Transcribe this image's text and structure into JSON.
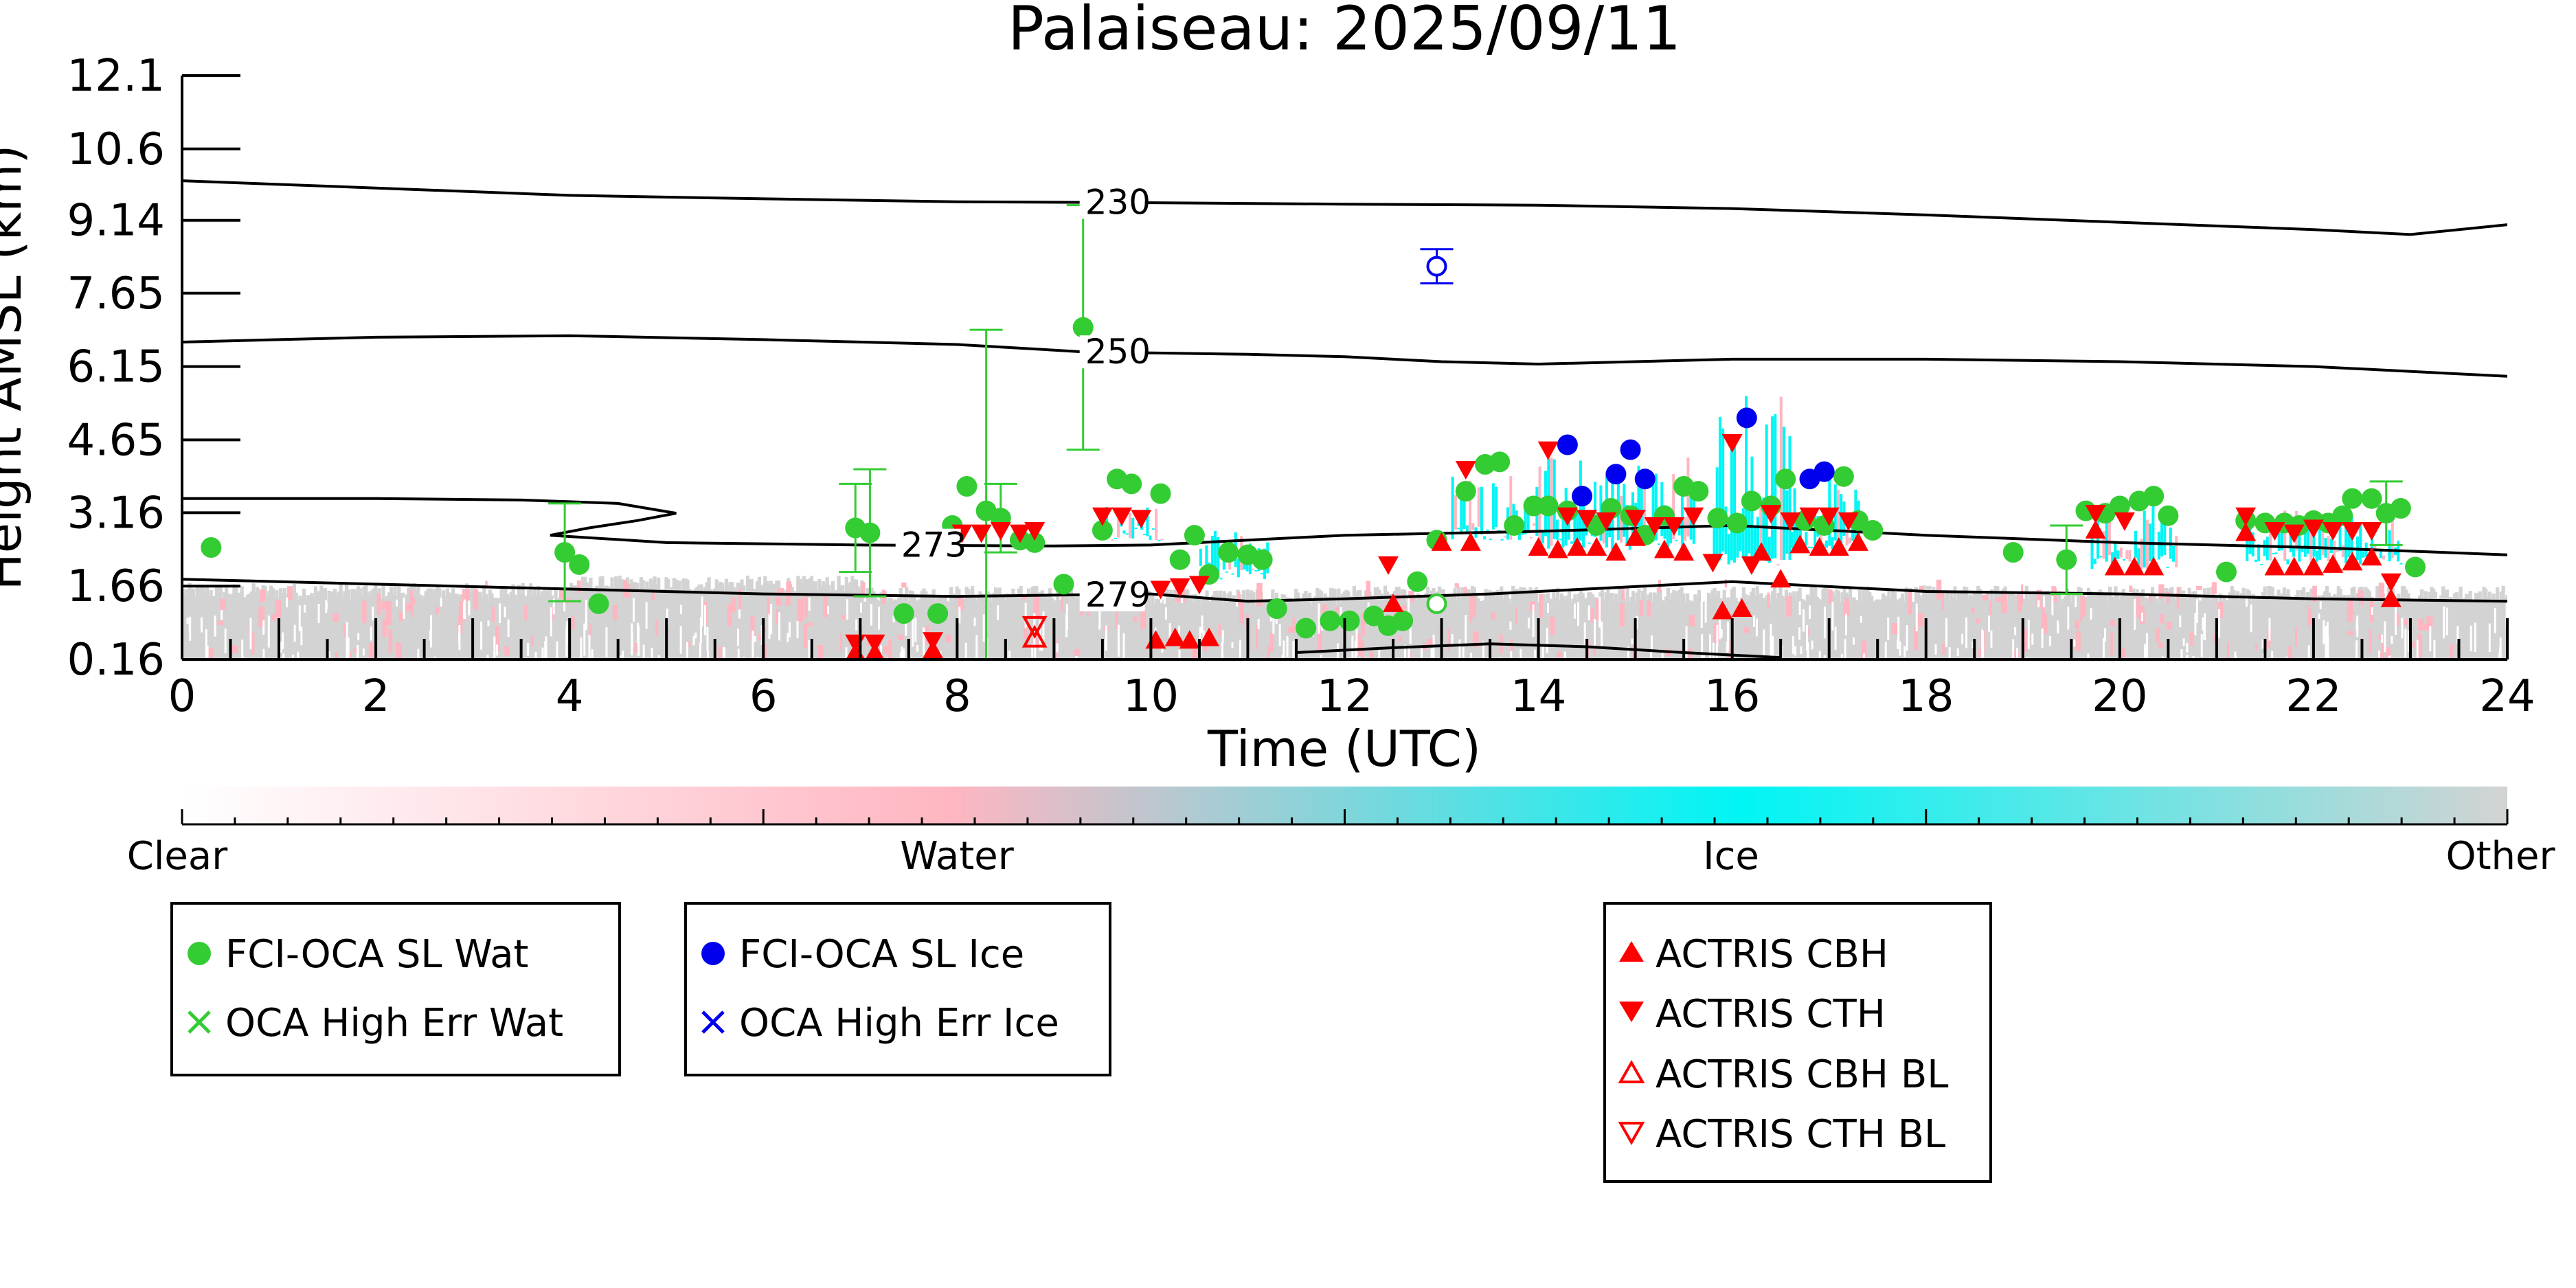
{
  "chart_data": {
    "type": "scatter",
    "title": "Palaiseau: 2025/09/11",
    "xlabel": "Time (UTC)",
    "ylabel": "Height AMSL (km)",
    "xlim": [
      0,
      24
    ],
    "ylim": [
      0.16,
      12.1
    ],
    "x_ticks": [
      0,
      2,
      4,
      6,
      8,
      10,
      12,
      14,
      16,
      18,
      20,
      22,
      24
    ],
    "y_ticks": [
      "0.16",
      "1.66",
      "3.16",
      "4.65",
      "6.15",
      "7.65",
      "9.14",
      "10.6",
      "12.1"
    ],
    "y_tick_values": [
      0.16,
      1.66,
      3.16,
      4.65,
      6.15,
      7.65,
      9.14,
      10.6,
      12.1
    ],
    "grid": false,
    "colorbar": {
      "labels": [
        "Clear",
        "Water",
        "Ice",
        "Other"
      ],
      "colors": [
        "#ffffff",
        "#ffb6c1",
        "#00f5f5",
        "#d3d3d3"
      ]
    },
    "contours": [
      {
        "label": "230",
        "label_x": 9.3,
        "points": [
          [
            0,
            9.95
          ],
          [
            2,
            9.8
          ],
          [
            4,
            9.65
          ],
          [
            6,
            9.58
          ],
          [
            8,
            9.52
          ],
          [
            10,
            9.5
          ],
          [
            12,
            9.47
          ],
          [
            14,
            9.45
          ],
          [
            16,
            9.38
          ],
          [
            18,
            9.25
          ],
          [
            20,
            9.1
          ],
          [
            22,
            8.95
          ],
          [
            23,
            8.85
          ],
          [
            24,
            9.05
          ]
        ]
      },
      {
        "label": "250",
        "label_x": 9.3,
        "points": [
          [
            0,
            6.65
          ],
          [
            1,
            6.7
          ],
          [
            2,
            6.75
          ],
          [
            4,
            6.78
          ],
          [
            6,
            6.7
          ],
          [
            8,
            6.6
          ],
          [
            9.3,
            6.45
          ],
          [
            11,
            6.4
          ],
          [
            12,
            6.35
          ],
          [
            13,
            6.25
          ],
          [
            14,
            6.2
          ],
          [
            16,
            6.3
          ],
          [
            18,
            6.3
          ],
          [
            20,
            6.25
          ],
          [
            22,
            6.15
          ],
          [
            24,
            5.95
          ]
        ]
      },
      {
        "label": "273",
        "label_x": 7.4,
        "points": [
          [
            0,
            3.45
          ],
          [
            2,
            3.45
          ],
          [
            3.5,
            3.42
          ],
          [
            4.5,
            3.35
          ],
          [
            5.1,
            3.15
          ],
          [
            4.7,
            3.0
          ],
          [
            4.2,
            2.85
          ],
          [
            3.8,
            2.7
          ],
          [
            5,
            2.55
          ],
          [
            7,
            2.5
          ],
          [
            9,
            2.48
          ],
          [
            10,
            2.5
          ],
          [
            12,
            2.7
          ],
          [
            14,
            2.78
          ],
          [
            16,
            2.9
          ],
          [
            18,
            2.7
          ],
          [
            20,
            2.55
          ],
          [
            22,
            2.45
          ],
          [
            24,
            2.3
          ]
        ]
      },
      {
        "label": "279",
        "label_x": 9.3,
        "points": [
          [
            0,
            1.8
          ],
          [
            2,
            1.7
          ],
          [
            4,
            1.6
          ],
          [
            6,
            1.5
          ],
          [
            8,
            1.45
          ],
          [
            10,
            1.5
          ],
          [
            11,
            1.35
          ],
          [
            12,
            1.4
          ],
          [
            13.5,
            1.5
          ],
          [
            15,
            1.65
          ],
          [
            16,
            1.75
          ],
          [
            18,
            1.55
          ],
          [
            20,
            1.5
          ],
          [
            22,
            1.4
          ],
          [
            24,
            1.35
          ]
        ]
      },
      {
        "label": "",
        "label_x": null,
        "points": [
          [
            11.5,
            0.3
          ],
          [
            12.5,
            0.4
          ],
          [
            13.5,
            0.48
          ],
          [
            14.5,
            0.42
          ],
          [
            15.5,
            0.3
          ],
          [
            16.5,
            0.2
          ]
        ]
      }
    ],
    "series": [
      {
        "name": "FCI-OCA SL Wat",
        "marker": "circle",
        "color": "#33cc33",
        "points": [
          {
            "x": 0.3,
            "y": 2.45
          },
          {
            "x": 3.95,
            "y": 2.35,
            "err": 1.0
          },
          {
            "x": 4.1,
            "y": 2.1
          },
          {
            "x": 4.3,
            "y": 1.3
          },
          {
            "x": 6.95,
            "y": 2.85,
            "err": 0.9
          },
          {
            "x": 7.1,
            "y": 2.75,
            "err": 1.3
          },
          {
            "x": 7.45,
            "y": 1.1
          },
          {
            "x": 7.8,
            "y": 1.1
          },
          {
            "x": 7.95,
            "y": 2.9
          },
          {
            "x": 8.1,
            "y": 3.7
          },
          {
            "x": 8.3,
            "y": 3.2,
            "err": 3.7
          },
          {
            "x": 8.45,
            "y": 3.05,
            "err": 0.7
          },
          {
            "x": 8.65,
            "y": 2.6
          },
          {
            "x": 8.8,
            "y": 2.55
          },
          {
            "x": 9.1,
            "y": 1.7
          },
          {
            "x": 9.3,
            "y": 6.95,
            "err": 2.5
          },
          {
            "x": 9.5,
            "y": 2.8
          },
          {
            "x": 9.65,
            "y": 3.85
          },
          {
            "x": 9.8,
            "y": 3.75
          },
          {
            "x": 10.1,
            "y": 3.55
          },
          {
            "x": 10.3,
            "y": 2.2
          },
          {
            "x": 10.45,
            "y": 2.7
          },
          {
            "x": 10.6,
            "y": 1.9
          },
          {
            "x": 10.8,
            "y": 2.35
          },
          {
            "x": 11.0,
            "y": 2.3
          },
          {
            "x": 11.15,
            "y": 2.2
          },
          {
            "x": 11.3,
            "y": 1.2
          },
          {
            "x": 11.6,
            "y": 0.8
          },
          {
            "x": 11.85,
            "y": 0.95
          },
          {
            "x": 12.05,
            "y": 0.95
          },
          {
            "x": 12.3,
            "y": 1.05
          },
          {
            "x": 12.45,
            "y": 0.85
          },
          {
            "x": 12.6,
            "y": 0.95
          },
          {
            "x": 12.75,
            "y": 1.75
          },
          {
            "x": 12.95,
            "y": 2.6
          },
          {
            "x": 13.25,
            "y": 3.6
          },
          {
            "x": 13.45,
            "y": 4.15
          },
          {
            "x": 13.6,
            "y": 4.2
          },
          {
            "x": 13.75,
            "y": 2.9
          },
          {
            "x": 13.95,
            "y": 3.3
          },
          {
            "x": 14.1,
            "y": 3.3
          },
          {
            "x": 14.3,
            "y": 3.2
          },
          {
            "x": 14.6,
            "y": 2.9
          },
          {
            "x": 14.75,
            "y": 3.25
          },
          {
            "x": 14.95,
            "y": 3.1
          },
          {
            "x": 15.1,
            "y": 2.7
          },
          {
            "x": 15.3,
            "y": 3.1
          },
          {
            "x": 15.5,
            "y": 3.7
          },
          {
            "x": 15.65,
            "y": 3.6
          },
          {
            "x": 15.85,
            "y": 3.05
          },
          {
            "x": 16.05,
            "y": 2.95
          },
          {
            "x": 16.2,
            "y": 3.4
          },
          {
            "x": 16.4,
            "y": 3.3
          },
          {
            "x": 16.55,
            "y": 3.85
          },
          {
            "x": 16.75,
            "y": 3.0
          },
          {
            "x": 16.95,
            "y": 2.9
          },
          {
            "x": 17.15,
            "y": 3.9
          },
          {
            "x": 17.3,
            "y": 3.0
          },
          {
            "x": 17.45,
            "y": 2.8
          },
          {
            "x": 18.9,
            "y": 2.35
          },
          {
            "x": 19.45,
            "y": 2.2,
            "err": 0.7
          },
          {
            "x": 19.65,
            "y": 3.2
          },
          {
            "x": 19.85,
            "y": 3.15
          },
          {
            "x": 20.0,
            "y": 3.3
          },
          {
            "x": 20.2,
            "y": 3.4
          },
          {
            "x": 20.35,
            "y": 3.5
          },
          {
            "x": 20.5,
            "y": 3.1
          },
          {
            "x": 21.1,
            "y": 1.95
          },
          {
            "x": 21.3,
            "y": 3.0
          },
          {
            "x": 21.5,
            "y": 2.95
          },
          {
            "x": 21.7,
            "y": 2.95
          },
          {
            "x": 21.85,
            "y": 2.9
          },
          {
            "x": 22.0,
            "y": 3.0
          },
          {
            "x": 22.15,
            "y": 2.95
          },
          {
            "x": 22.3,
            "y": 3.1
          },
          {
            "x": 22.4,
            "y": 3.45
          },
          {
            "x": 22.6,
            "y": 3.45
          },
          {
            "x": 22.75,
            "y": 3.15,
            "err": 0.65
          },
          {
            "x": 22.9,
            "y": 3.25
          },
          {
            "x": 23.05,
            "y": 2.05
          }
        ]
      },
      {
        "name": "OCA High Err Wat",
        "marker": "x",
        "color": "#33cc33",
        "points": []
      },
      {
        "name": "FCI-OCA SL Ice",
        "marker": "circle",
        "color": "#0000ee",
        "points": [
          {
            "x": 14.3,
            "y": 4.55
          },
          {
            "x": 14.45,
            "y": 3.5
          },
          {
            "x": 14.8,
            "y": 3.95
          },
          {
            "x": 14.95,
            "y": 4.45
          },
          {
            "x": 15.1,
            "y": 3.85
          },
          {
            "x": 16.15,
            "y": 5.1
          },
          {
            "x": 16.8,
            "y": 3.85
          },
          {
            "x": 16.95,
            "y": 4.0
          }
        ]
      },
      {
        "name": "OCA High Err Ice",
        "marker": "x",
        "color": "#0000ee",
        "points": []
      },
      {
        "name": "ACTRIS CBH",
        "marker": "triangle-up",
        "color": "#ff0000",
        "points": [
          {
            "x": 6.95,
            "y": 0.3
          },
          {
            "x": 7.15,
            "y": 0.3
          },
          {
            "x": 7.75,
            "y": 0.35
          },
          {
            "x": 10.05,
            "y": 0.55
          },
          {
            "x": 10.25,
            "y": 0.6
          },
          {
            "x": 10.4,
            "y": 0.55
          },
          {
            "x": 10.6,
            "y": 0.6
          },
          {
            "x": 12.5,
            "y": 1.3
          },
          {
            "x": 13.0,
            "y": 2.55
          },
          {
            "x": 13.3,
            "y": 2.55
          },
          {
            "x": 14.0,
            "y": 2.45
          },
          {
            "x": 14.2,
            "y": 2.4
          },
          {
            "x": 14.4,
            "y": 2.45
          },
          {
            "x": 14.6,
            "y": 2.45
          },
          {
            "x": 14.8,
            "y": 2.35
          },
          {
            "x": 15.0,
            "y": 2.65
          },
          {
            "x": 15.3,
            "y": 2.4
          },
          {
            "x": 15.5,
            "y": 2.35
          },
          {
            "x": 15.9,
            "y": 1.15
          },
          {
            "x": 16.1,
            "y": 1.2
          },
          {
            "x": 16.3,
            "y": 2.35
          },
          {
            "x": 16.5,
            "y": 1.8
          },
          {
            "x": 16.7,
            "y": 2.5
          },
          {
            "x": 16.9,
            "y": 2.45
          },
          {
            "x": 17.1,
            "y": 2.45
          },
          {
            "x": 17.3,
            "y": 2.55
          },
          {
            "x": 19.75,
            "y": 2.8
          },
          {
            "x": 19.95,
            "y": 2.05
          },
          {
            "x": 20.15,
            "y": 2.05
          },
          {
            "x": 20.35,
            "y": 2.05
          },
          {
            "x": 21.3,
            "y": 2.75
          },
          {
            "x": 21.6,
            "y": 2.05
          },
          {
            "x": 21.8,
            "y": 2.05
          },
          {
            "x": 22.0,
            "y": 2.05
          },
          {
            "x": 22.2,
            "y": 2.1
          },
          {
            "x": 22.4,
            "y": 2.15
          },
          {
            "x": 22.6,
            "y": 2.25
          },
          {
            "x": 22.8,
            "y": 1.4
          }
        ]
      },
      {
        "name": "ACTRIS CTH",
        "marker": "triangle-down",
        "color": "#ff0000",
        "points": [
          {
            "x": 6.95,
            "y": 0.5
          },
          {
            "x": 7.15,
            "y": 0.5
          },
          {
            "x": 7.75,
            "y": 0.55
          },
          {
            "x": 8.05,
            "y": 2.75
          },
          {
            "x": 8.25,
            "y": 2.75
          },
          {
            "x": 8.45,
            "y": 2.8
          },
          {
            "x": 8.65,
            "y": 2.75
          },
          {
            "x": 8.8,
            "y": 2.8
          },
          {
            "x": 9.5,
            "y": 3.1
          },
          {
            "x": 9.7,
            "y": 3.1
          },
          {
            "x": 9.9,
            "y": 3.05
          },
          {
            "x": 10.1,
            "y": 1.6
          },
          {
            "x": 10.3,
            "y": 1.65
          },
          {
            "x": 10.5,
            "y": 1.7
          },
          {
            "x": 12.45,
            "y": 2.1
          },
          {
            "x": 13.25,
            "y": 4.05
          },
          {
            "x": 14.1,
            "y": 4.45
          },
          {
            "x": 14.3,
            "y": 3.1
          },
          {
            "x": 14.5,
            "y": 3.05
          },
          {
            "x": 14.7,
            "y": 3.0
          },
          {
            "x": 15.0,
            "y": 3.05
          },
          {
            "x": 15.2,
            "y": 2.9
          },
          {
            "x": 15.4,
            "y": 2.9
          },
          {
            "x": 15.6,
            "y": 3.1
          },
          {
            "x": 15.8,
            "y": 2.15
          },
          {
            "x": 16.0,
            "y": 4.6
          },
          {
            "x": 16.2,
            "y": 2.1
          },
          {
            "x": 16.4,
            "y": 3.15
          },
          {
            "x": 16.6,
            "y": 3.0
          },
          {
            "x": 16.8,
            "y": 3.1
          },
          {
            "x": 17.0,
            "y": 3.1
          },
          {
            "x": 17.2,
            "y": 3.0
          },
          {
            "x": 19.75,
            "y": 3.15
          },
          {
            "x": 20.05,
            "y": 3.0
          },
          {
            "x": 21.3,
            "y": 3.1
          },
          {
            "x": 21.6,
            "y": 2.8
          },
          {
            "x": 21.8,
            "y": 2.75
          },
          {
            "x": 22.0,
            "y": 2.85
          },
          {
            "x": 22.2,
            "y": 2.8
          },
          {
            "x": 22.4,
            "y": 2.8
          },
          {
            "x": 22.6,
            "y": 2.8
          },
          {
            "x": 22.8,
            "y": 1.75
          }
        ]
      },
      {
        "name": "ACTRIS CBH BL",
        "marker": "triangle-up-open",
        "color": "#ff0000",
        "points": [
          {
            "x": 8.8,
            "y": 0.6
          }
        ]
      },
      {
        "name": "ACTRIS CTH BL",
        "marker": "triangle-down-open",
        "color": "#ff0000",
        "points": [
          {
            "x": 8.8,
            "y": 0.85
          }
        ]
      },
      {
        "name": "",
        "marker": "circle-open",
        "color": "#33cc33",
        "points": [
          {
            "x": 12.95,
            "y": 1.3
          }
        ]
      },
      {
        "name": "",
        "marker": "circle-open",
        "color": "#0000ee",
        "points": [
          {
            "x": 12.95,
            "y": 8.2,
            "err": 0.35
          }
        ]
      }
    ]
  }
}
